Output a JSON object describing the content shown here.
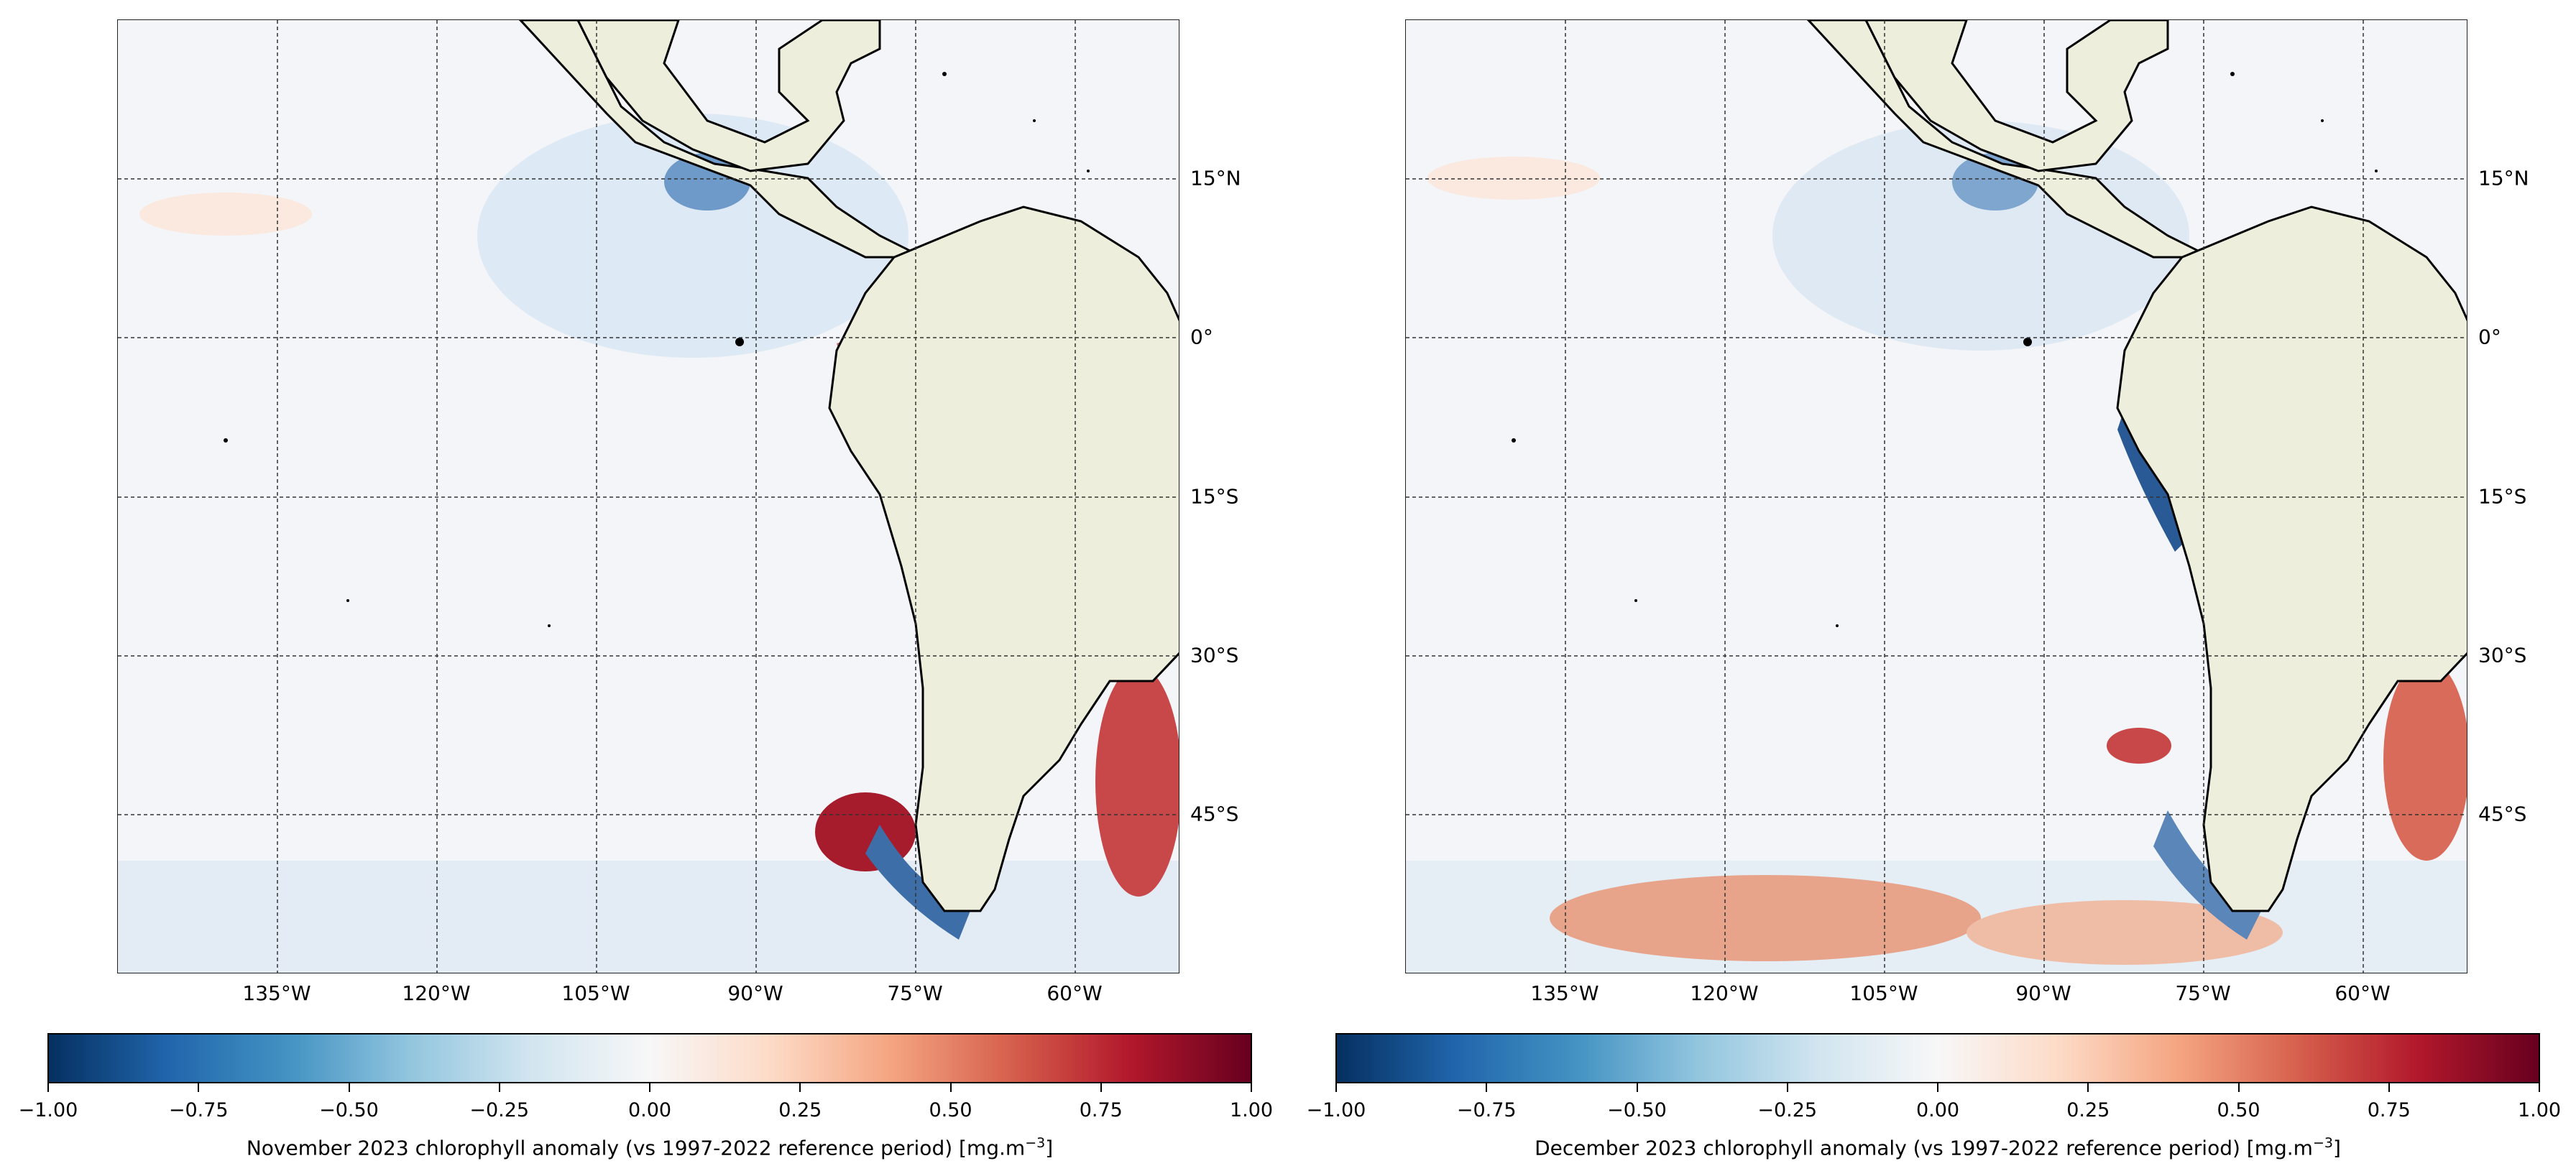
{
  "colors": {
    "land": "#eeeedc",
    "ocean_neutral": "#f3f5f8",
    "coast": "#000000",
    "grid": "#333333",
    "cmap": [
      "#67001f",
      "#b2182b",
      "#d6604d",
      "#f4a582",
      "#fddbc7",
      "#f7f7f7",
      "#d1e5f0",
      "#92c5de",
      "#4393c3",
      "#2166ac",
      "#053061"
    ]
  },
  "colormap_name": "RdBu_r",
  "panels": [
    {
      "id": "november",
      "title_text": "November 2023 chlorophyll anomaly (vs 1997-2022 reference period) [mg.m",
      "title_unit_sup": "−3",
      "title_close": "]"
    },
    {
      "id": "december",
      "title_text": "December 2023 chlorophyll anomaly (vs 1997-2022 reference period) [mg.m",
      "title_unit_sup": "−3",
      "title_close": "]"
    }
  ],
  "axes": {
    "lat_ticks": [
      "15°N",
      "0°",
      "15°S",
      "30°S",
      "45°S"
    ],
    "lon_ticks": [
      "135°W",
      "120°W",
      "105°W",
      "90°W",
      "75°W",
      "60°W"
    ]
  },
  "colorbar": {
    "range": [
      -1.0,
      1.0
    ],
    "ticks": [
      "−1.00",
      "−0.75",
      "−0.50",
      "−0.25",
      "0.00",
      "0.25",
      "0.50",
      "0.75",
      "1.00"
    ]
  },
  "map_extent": {
    "lon_range_deg": [
      -150,
      -50
    ],
    "lat_range_deg": [
      -60,
      30
    ]
  }
}
